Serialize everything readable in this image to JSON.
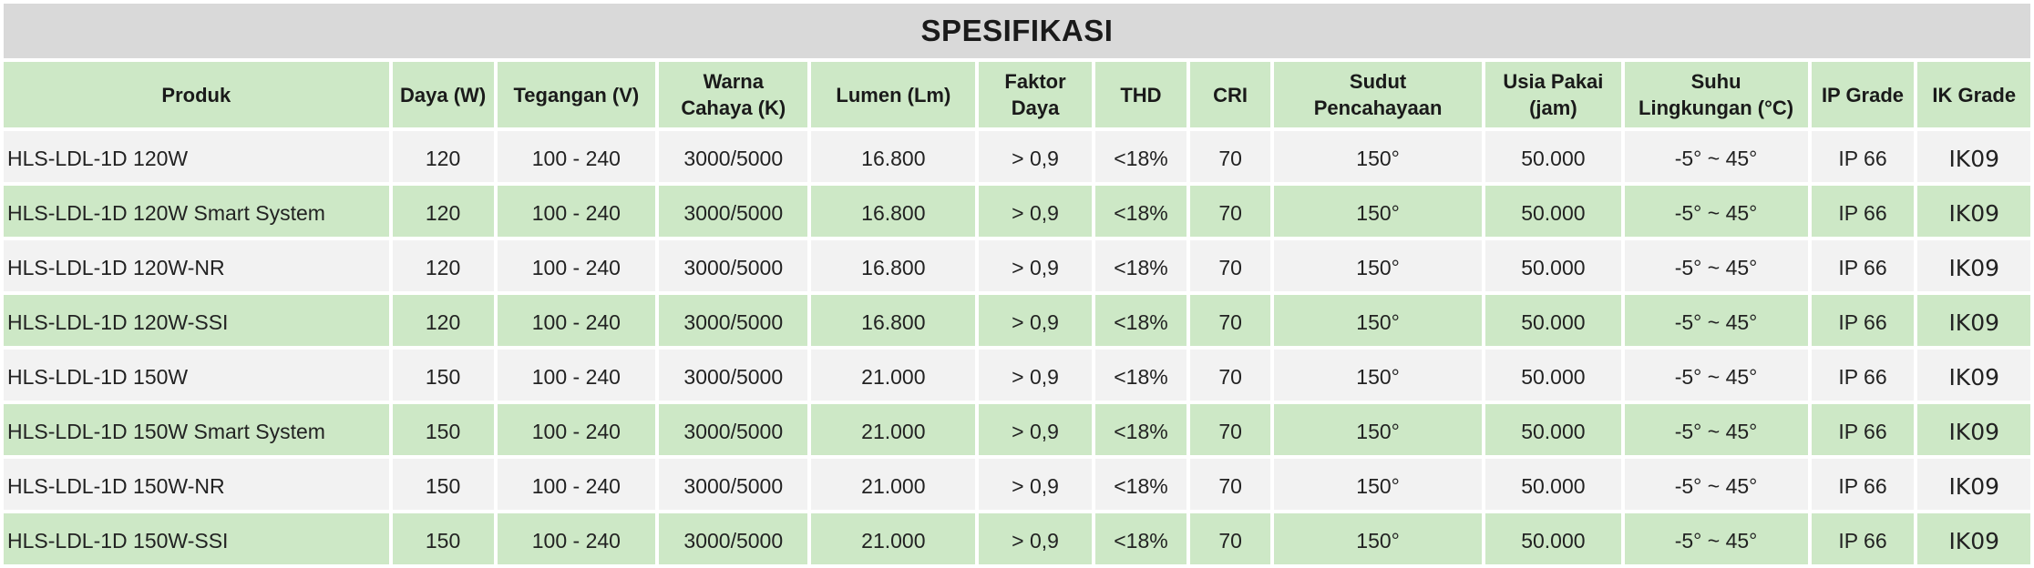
{
  "title": "SPESIFIKASI",
  "columns": [
    {
      "key": "produk",
      "label": [
        "Produk"
      ]
    },
    {
      "key": "daya",
      "label": [
        "Daya (W)"
      ]
    },
    {
      "key": "tegangan",
      "label": [
        "Tegangan (V)"
      ]
    },
    {
      "key": "warna",
      "label": [
        "Warna",
        "Cahaya (K)"
      ]
    },
    {
      "key": "lumen",
      "label": [
        "Lumen (Lm)"
      ]
    },
    {
      "key": "faktor",
      "label": [
        "Faktor",
        "Daya"
      ]
    },
    {
      "key": "thd",
      "label": [
        "THD"
      ]
    },
    {
      "key": "cri",
      "label": [
        "CRI"
      ]
    },
    {
      "key": "sudut",
      "label": [
        "Sudut",
        "Pencahayaan"
      ]
    },
    {
      "key": "usia",
      "label": [
        "Usia Pakai",
        "(jam)"
      ]
    },
    {
      "key": "suhu",
      "label": [
        "Suhu",
        "Lingkungan (°C)"
      ]
    },
    {
      "key": "ip",
      "label": [
        "IP Grade"
      ]
    },
    {
      "key": "ik",
      "label": [
        "IK Grade"
      ]
    }
  ],
  "rows": [
    [
      "HLS-LDL-1D 120W",
      "120",
      "100 - 240",
      "3000/5000",
      "16.800",
      "> 0,9",
      "<18%",
      "70",
      "150°",
      "50.000",
      "-5° ~ 45°",
      "IP 66",
      "IK09"
    ],
    [
      "HLS-LDL-1D 120W Smart System",
      "120",
      "100 - 240",
      "3000/5000",
      "16.800",
      "> 0,9",
      "<18%",
      "70",
      "150°",
      "50.000",
      "-5° ~ 45°",
      "IP 66",
      "IK09"
    ],
    [
      "HLS-LDL-1D 120W-NR",
      "120",
      "100 - 240",
      "3000/5000",
      "16.800",
      "> 0,9",
      "<18%",
      "70",
      "150°",
      "50.000",
      "-5° ~ 45°",
      "IP 66",
      "IK09"
    ],
    [
      "HLS-LDL-1D 120W-SSI",
      "120",
      "100 - 240",
      "3000/5000",
      "16.800",
      "> 0,9",
      "<18%",
      "70",
      "150°",
      "50.000",
      "-5° ~ 45°",
      "IP 66",
      "IK09"
    ],
    [
      "HLS-LDL-1D 150W",
      "150",
      "100 - 240",
      "3000/5000",
      "21.000",
      "> 0,9",
      "<18%",
      "70",
      "150°",
      "50.000",
      "-5° ~ 45°",
      "IP 66",
      "IK09"
    ],
    [
      "HLS-LDL-1D 150W Smart System",
      "150",
      "100 - 240",
      "3000/5000",
      "21.000",
      "> 0,9",
      "<18%",
      "70",
      "150°",
      "50.000",
      "-5° ~ 45°",
      "IP 66",
      "IK09"
    ],
    [
      "HLS-LDL-1D 150W-NR",
      "150",
      "100 - 240",
      "3000/5000",
      "21.000",
      "> 0,9",
      "<18%",
      "70",
      "150°",
      "50.000",
      "-5° ~ 45°",
      "IP 66",
      "IK09"
    ],
    [
      "HLS-LDL-1D 150W-SSI",
      "150",
      "100 - 240",
      "3000/5000",
      "21.000",
      "> 0,9",
      "<18%",
      "70",
      "150°",
      "50.000",
      "-5° ~ 45°",
      "IP 66",
      "IK09"
    ]
  ]
}
